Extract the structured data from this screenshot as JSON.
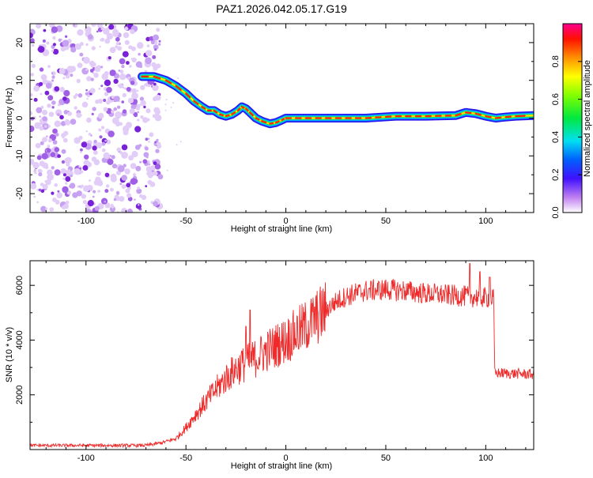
{
  "title": "PAZ1.2026.042.05.17.G19",
  "colors": {
    "snr_line": "#ee2a2a",
    "axis": "#000000",
    "scatter_dot": "#a060e6"
  },
  "chart_data": [
    {
      "type": "heatmap",
      "name": "spectrogram",
      "xlabel": "Height of straight line (km)",
      "ylabel": "Frequency (Hz)",
      "xlim": [
        -128,
        124
      ],
      "ylim": [
        -25,
        25
      ],
      "xticks": [
        -100,
        -50,
        0,
        50,
        100
      ],
      "yticks": [
        -20,
        -10,
        0,
        10,
        20
      ],
      "noise_region_x": [
        -128,
        -64
      ],
      "ridge": {
        "x": [
          -72,
          -66,
          -60,
          -55,
          -50,
          -46,
          -42,
          -39,
          -36,
          -33,
          -30,
          -27,
          -24,
          -22,
          -20,
          -18,
          -15,
          -12,
          -8,
          -5,
          -2,
          0,
          5,
          20,
          40,
          55,
          70,
          85,
          90,
          95,
          100,
          105,
          110,
          115,
          124
        ],
        "y": [
          11,
          11,
          10,
          8.5,
          6.5,
          4.5,
          3,
          2,
          2,
          1,
          0.5,
          1,
          2,
          3,
          2.5,
          1.5,
          0,
          -0.8,
          -1.5,
          -1.2,
          -0.5,
          0,
          0,
          0,
          0,
          0.5,
          0.5,
          0.7,
          1.5,
          1.2,
          0.5,
          0,
          0.3,
          0.5,
          0.7
        ]
      }
    },
    {
      "type": "colorbar",
      "name": "colorbar",
      "label": "Normalized spectral amplitude",
      "range": [
        0,
        1
      ],
      "ticks": [
        0.0,
        0.2,
        0.4,
        0.6,
        0.8
      ],
      "tick_labels": [
        "0.0",
        "0.2",
        "0.4",
        "0.6",
        "0.8"
      ]
    },
    {
      "type": "line",
      "name": "snr",
      "xlabel": "Height of straight line (km)",
      "ylabel": "SNR (10 * v/v)",
      "xlim": [
        -128,
        124
      ],
      "ylim": [
        0,
        6900
      ],
      "xticks": [
        -100,
        -50,
        0,
        50,
        100
      ],
      "yticks": [
        2000,
        4000,
        6000
      ],
      "envelope": {
        "x": [
          -128,
          -70,
          -62,
          -55,
          -50,
          -45,
          -40,
          -35,
          -30,
          -25,
          -20,
          -15,
          -10,
          -5,
          0,
          5,
          10,
          15,
          20,
          25,
          30,
          40,
          50,
          60,
          70,
          80,
          90,
          100,
          104,
          104.5,
          124
        ],
        "y": [
          150,
          150,
          250,
          400,
          800,
          1300,
          1750,
          2200,
          2600,
          2950,
          3150,
          3350,
          3600,
          3800,
          4000,
          4250,
          4500,
          4800,
          5100,
          5400,
          5600,
          5800,
          5850,
          5800,
          5700,
          5650,
          5600,
          5550,
          5500,
          2800,
          2750
        ]
      },
      "spikes": [
        {
          "x": -18,
          "y": 5100
        },
        {
          "x": -20,
          "y": 4500
        },
        {
          "x": -22,
          "y": 3600
        },
        {
          "x": 92,
          "y": 6800
        },
        {
          "x": 97,
          "y": 6500
        },
        {
          "x": 102,
          "y": 6300
        }
      ]
    }
  ]
}
